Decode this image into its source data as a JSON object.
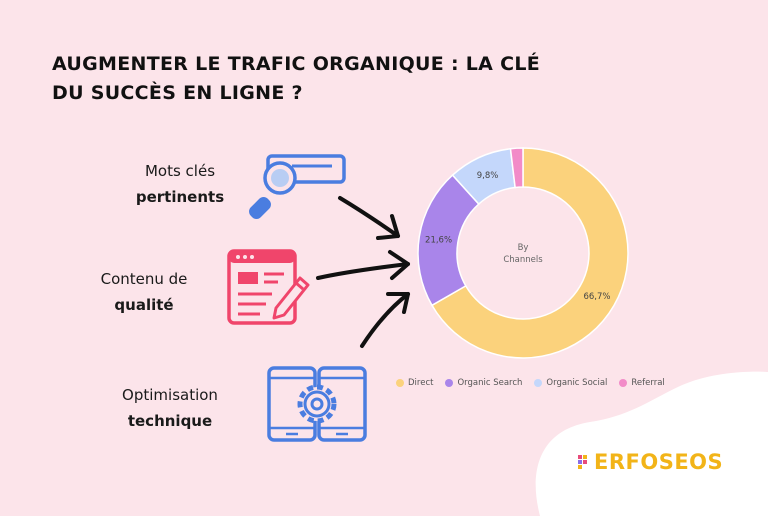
{
  "title": {
    "line1": "Augmenter le trafic organique : la clé",
    "line2": "du succès en ligne ?"
  },
  "features": [
    {
      "line1": "Mots clés",
      "line2": "pertinents",
      "icon": "magnifier-icon"
    },
    {
      "line1": "Contenu de",
      "line2": "qualité",
      "icon": "content-edit-icon"
    },
    {
      "line1": "Optimisation",
      "line2": "technique",
      "icon": "gear-device-icon"
    }
  ],
  "colors": {
    "background": "#fce4ea",
    "icon_blue": "#4a7de0",
    "icon_red": "#f0456b",
    "logo": "#f2b418"
  },
  "chart_data": {
    "type": "pie",
    "variant": "donut",
    "center_label": [
      "By",
      "Channels"
    ],
    "categories": [
      "Direct",
      "Organic Search",
      "Organic Social",
      "Referral"
    ],
    "values": [
      66.7,
      21.6,
      9.8,
      1.9
    ],
    "value_labels": [
      "66,7%",
      "21,6%",
      "9,8%",
      ""
    ],
    "colors": [
      "#fbd27c",
      "#a985ea",
      "#c4d7fb",
      "#f28bc8"
    ],
    "legend_position": "bottom"
  },
  "logo": {
    "text": "ERFOSEOS"
  }
}
